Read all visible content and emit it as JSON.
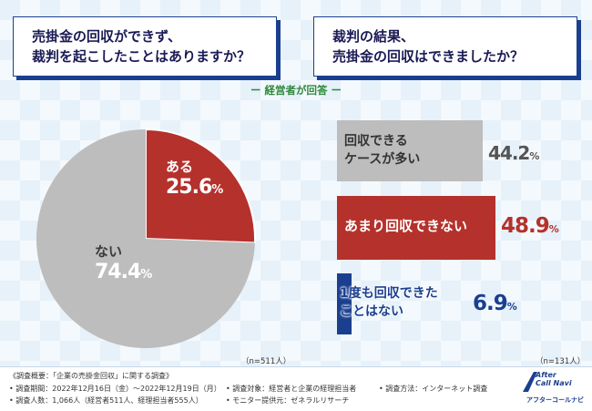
{
  "question_left": {
    "line1": "売掛金の回収ができず、",
    "line2": "裁判を起こしたことはありますか？"
  },
  "question_right": {
    "line1": "裁判の結果、",
    "line2": "売掛金の回収はできましたか？"
  },
  "subtitle": "ー 経営者が回答 ー",
  "chart_data": [
    {
      "type": "pie",
      "title": "売掛金の回収ができず、裁判を起こしたことはありますか？",
      "slices": [
        {
          "label": "ある",
          "value": 25.6,
          "display": "25.6",
          "color": "#b5312c"
        },
        {
          "label": "ない",
          "value": 74.4,
          "display": "74.4",
          "color": "#bdbdbd"
        }
      ],
      "unit": "%",
      "n": "（n=511人）"
    },
    {
      "type": "bar",
      "title": "裁判の結果、売掛金の回収はできましたか？",
      "categories": [
        "回収できるケースが多い",
        "あまり回収できない",
        "1度も回収できたことはない"
      ],
      "labels": [
        {
          "line1": "回収できる",
          "line2": "ケースが多い"
        },
        {
          "line1": "あまり回収できない",
          "line2": ""
        },
        {
          "line1": "1度も回収できた",
          "line2": "ことはない"
        }
      ],
      "values": [
        44.2,
        48.9,
        6.9
      ],
      "display": [
        "44.2",
        "48.9",
        "6.9"
      ],
      "colors": [
        "#bdbdbd",
        "#b5312c",
        "#1b3f8f"
      ],
      "unit": "%",
      "n": "（n=131人）"
    }
  ],
  "footer": {
    "title": "《調査概要：「企業の売掛金回収」に関する調査》",
    "period": "• 調査期間：2022年12月16日（金）〜2022年12月19日（月）",
    "count": "• 調査人数：1,066人（経営者511人、経理担当者555人）",
    "target": "• 調査対象：経営者と企業の経理担当者",
    "monitor": "• モニター提供元：ゼネラルリサーチ",
    "method": "• 調査方法：インターネット調査"
  },
  "logo": {
    "line1": "After",
    "line2": "Call Navi",
    "sub": "アフターコールナビ"
  }
}
